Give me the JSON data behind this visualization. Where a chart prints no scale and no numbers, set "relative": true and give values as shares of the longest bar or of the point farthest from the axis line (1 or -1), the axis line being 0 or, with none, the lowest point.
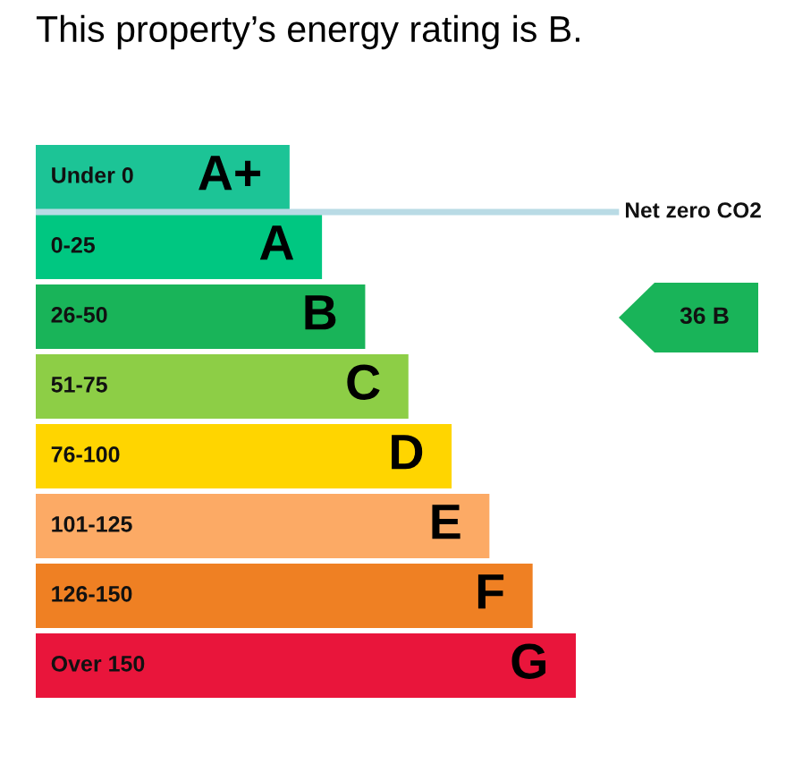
{
  "chart_data": {
    "type": "bar",
    "orientation": "horizontal",
    "relative": true,
    "title": "This property’s energy rating is B.",
    "categories": [
      "Under 0",
      "0-25",
      "26-50",
      "51-75",
      "76-100",
      "101-125",
      "126-150",
      "Over 150"
    ],
    "values": [
      0.47,
      0.53,
      0.61,
      0.69,
      0.77,
      0.84,
      0.92,
      1
    ],
    "colors": [
      "#1cc496",
      "#00c781",
      "#19b459",
      "#8dce46",
      "#ffd500",
      "#fcaa65",
      "#ef8023",
      "#e9153b"
    ],
    "ref_lines": [
      {
        "axis": "y",
        "value": "Under 0",
        "label": "Net zero CO2",
        "color": "#b9dbe5"
      }
    ],
    "annotations": [
      {
        "text": "A+",
        "x": 0.47,
        "y": "Under 0"
      },
      {
        "text": "A",
        "x": 0.53,
        "y": "0-25"
      },
      {
        "text": "B",
        "x": 0.61,
        "y": "26-50"
      },
      {
        "text": "C",
        "x": 0.69,
        "y": "51-75"
      },
      {
        "text": "D",
        "x": 0.77,
        "y": "76-100"
      },
      {
        "text": "E",
        "x": 0.84,
        "y": "101-125"
      },
      {
        "text": "F",
        "x": 0.92,
        "y": "126-150"
      },
      {
        "text": "G",
        "x": 1,
        "y": "Over 150"
      },
      "36 B"
    ]
  }
}
